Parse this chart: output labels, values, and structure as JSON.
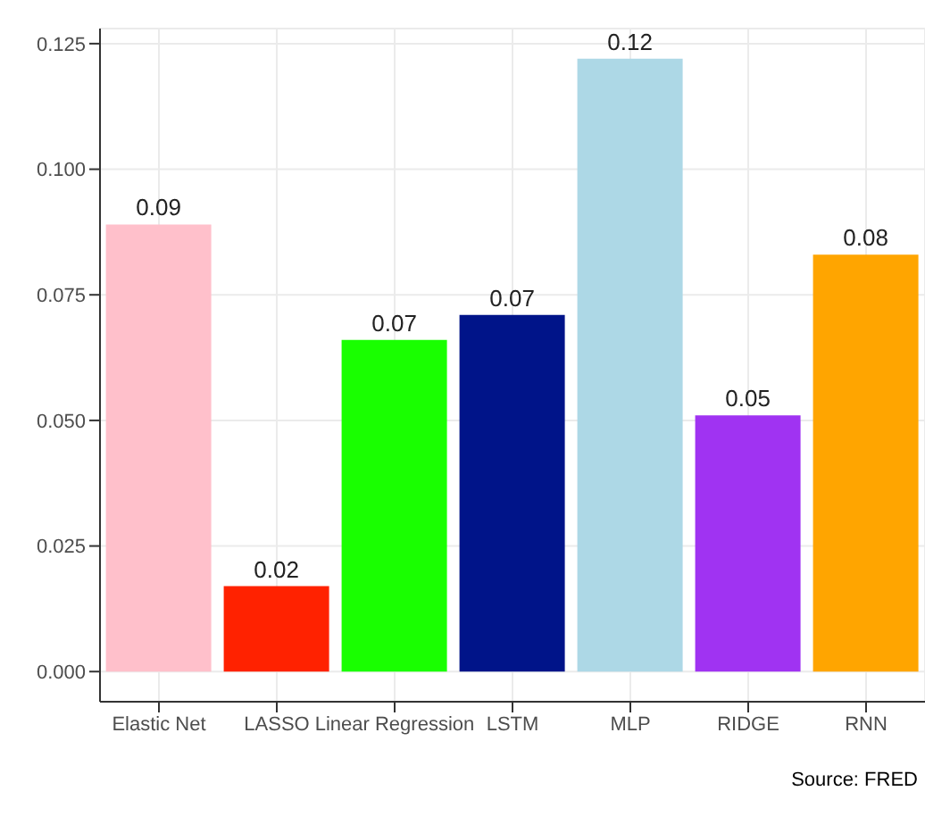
{
  "chart_data": {
    "type": "bar",
    "categories": [
      "Elastic Net",
      "LASSO",
      "Linear Regression",
      "LSTM",
      "MLP",
      "RIDGE",
      "RNN"
    ],
    "values": [
      0.089,
      0.017,
      0.066,
      0.071,
      0.122,
      0.051,
      0.083
    ],
    "value_labels": [
      "0.09",
      "0.02",
      "0.07",
      "0.07",
      "0.12",
      "0.05",
      "0.08"
    ],
    "colors": [
      "#ffc0cb",
      "#ff2200",
      "#19ff00",
      "#001489",
      "#add8e6",
      "#a033f2",
      "#ffa500"
    ],
    "ylim": [
      -0.006,
      0.128
    ],
    "yticks": [
      {
        "value": 0,
        "label": "0.000"
      },
      {
        "value": 0.025,
        "label": "0.025"
      },
      {
        "value": 0.05,
        "label": "0.050"
      },
      {
        "value": 0.075,
        "label": "0.075"
      },
      {
        "value": 0.1,
        "label": "0.100"
      },
      {
        "value": 0.125,
        "label": "0.125"
      }
    ],
    "grid": true,
    "annotations": [
      "Source: FRED"
    ]
  }
}
